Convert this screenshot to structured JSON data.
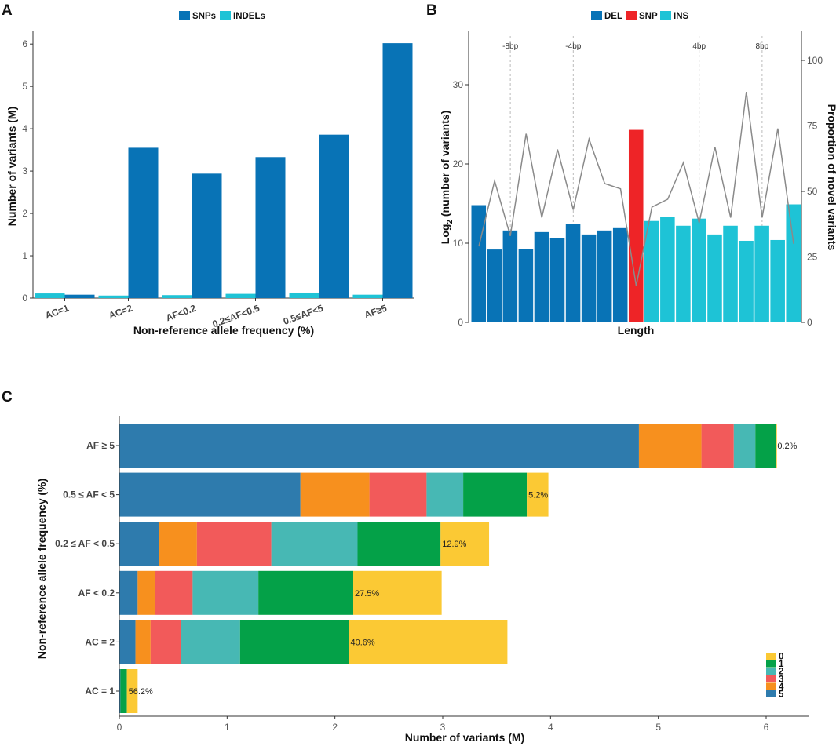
{
  "chart_data": [
    {
      "panel": "A",
      "type": "bar",
      "title": "",
      "xlabel": "Non-reference allele frequency (%)",
      "ylabel": "Number of variants (M)",
      "categories": [
        "AC=1",
        "AC=2",
        "AF<0.2",
        "0.2≤AF<0.5",
        "0.5≤AF<5",
        "AF≥5"
      ],
      "series": [
        {
          "name": "SNPs",
          "color": "#0873b6",
          "values": [
            0.08,
            3.55,
            2.94,
            3.33,
            3.86,
            6.02
          ]
        },
        {
          "name": "INDELs",
          "color": "#1ec3d6",
          "values": [
            0.11,
            0.06,
            0.07,
            0.1,
            0.13,
            0.08
          ]
        }
      ],
      "ylim": [
        0,
        6.3
      ],
      "yticks": [
        "0",
        "1",
        "2",
        "3",
        "4",
        "5",
        "6"
      ],
      "legend": "top"
    },
    {
      "panel": "B",
      "type": "bar",
      "xlabel": "Length",
      "ylabel_left_prefix": "Log",
      "ylabel_left_sub": "2",
      "ylabel_left_rest": " (number of variants)",
      "ylabel_right": "Proportion of novel variants",
      "ylim_left": [
        0,
        37
      ],
      "ylim_right": [
        0,
        111
      ],
      "yticks_left": [
        "0",
        "10",
        "20",
        "30"
      ],
      "yticks_right": [
        "0",
        "25",
        "50",
        "75",
        "100"
      ],
      "legend": "top",
      "legend_items": [
        {
          "name": "DEL",
          "color": "#0873b6"
        },
        {
          "name": "SNP",
          "color": "#ee2427"
        },
        {
          "name": "INS",
          "color": "#1ec3d6"
        }
      ],
      "bar_types": [
        "DEL",
        "DEL",
        "DEL",
        "DEL",
        "DEL",
        "DEL",
        "DEL",
        "DEL",
        "DEL",
        "DEL",
        "SNP",
        "INS",
        "INS",
        "INS",
        "INS",
        "INS",
        "INS",
        "INS",
        "INS",
        "INS",
        "INS"
      ],
      "values": [
        14.8,
        9.2,
        11.6,
        9.3,
        11.4,
        10.6,
        12.4,
        11.1,
        11.6,
        11.9,
        24.3,
        12.8,
        13.3,
        12.2,
        13.1,
        11.1,
        12.2,
        10.3,
        12.2,
        10.4,
        14.9
      ],
      "line_values": [
        29,
        54,
        33,
        72,
        40,
        66,
        43,
        70,
        53,
        51,
        14,
        44,
        47,
        61,
        38,
        67,
        40,
        88,
        40,
        74,
        30
      ],
      "annotations": [
        {
          "label": "-8bp",
          "at_bar": 2
        },
        {
          "label": "-4bp",
          "at_bar": 6
        },
        {
          "label": "4bp",
          "at_bar": 14
        },
        {
          "label": "8bp",
          "at_bar": 18
        }
      ]
    },
    {
      "panel": "C",
      "type": "bar",
      "orientation": "horizontal",
      "stacked": true,
      "xlabel": "Number of variants (M)",
      "ylabel": "Non-reference allele frequency (%)",
      "categories": [
        "AF ≥ 5",
        "0.5 ≤ AF < 5",
        "0.2 ≤ AF < 0.5",
        "AF < 0.2",
        "AC = 2",
        "AC = 1"
      ],
      "xlim": [
        0,
        6.35
      ],
      "xticks": [
        "0",
        "1",
        "2",
        "3",
        "4",
        "5",
        "6"
      ],
      "legend": "bottom-right",
      "legend_order": [
        "0",
        "1",
        "2",
        "3",
        "4",
        "5"
      ],
      "series": [
        {
          "name": "5",
          "color": "#2e7bad",
          "values": [
            4.82,
            1.68,
            0.37,
            0.17,
            0.15,
            0.01
          ]
        },
        {
          "name": "4",
          "color": "#f7901e",
          "values": [
            0.58,
            0.64,
            0.35,
            0.16,
            0.14,
            0.0
          ]
        },
        {
          "name": "3",
          "color": "#f25a5a",
          "values": [
            0.3,
            0.53,
            0.69,
            0.35,
            0.28,
            0.0
          ]
        },
        {
          "name": "2",
          "color": "#47b8b4",
          "values": [
            0.2,
            0.34,
            0.8,
            0.61,
            0.55,
            0.0
          ]
        },
        {
          "name": "1",
          "color": "#04a148",
          "values": [
            0.19,
            0.59,
            0.77,
            0.88,
            1.01,
            0.06
          ]
        },
        {
          "name": "0",
          "color": "#fbc934",
          "values": [
            0.01,
            0.2,
            0.45,
            0.82,
            1.47,
            0.1
          ]
        }
      ],
      "percent_labels": [
        "0.2%",
        "5.2%",
        "12.9%",
        "27.5%",
        "40.6%",
        "56.2%"
      ]
    }
  ],
  "panel_letters": [
    "A",
    "B",
    "C"
  ]
}
